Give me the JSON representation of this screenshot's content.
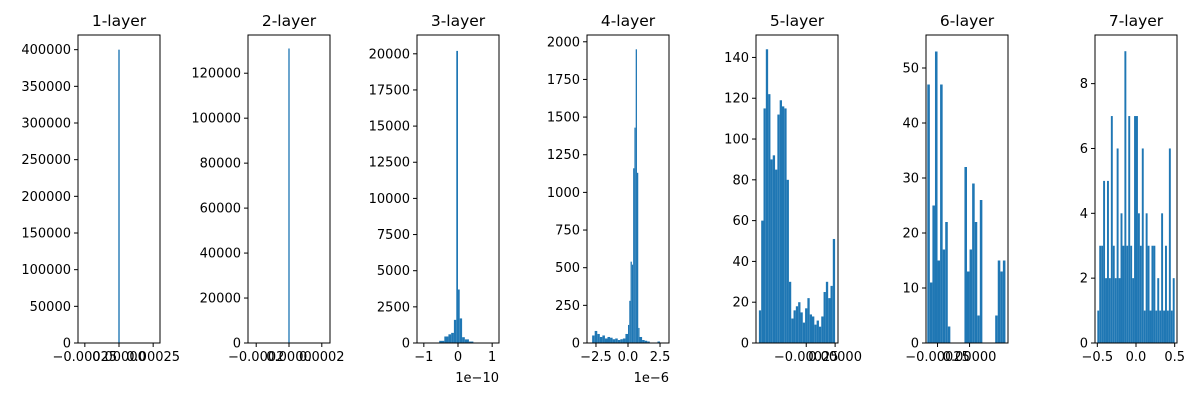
{
  "figure": {
    "bar_color": "#1f77b4"
  },
  "chart_data": [
    {
      "type": "bar",
      "title": "1-layer",
      "xlim": [
        -0.0003,
        0.0003
      ],
      "ylim": [
        0,
        420000
      ],
      "xticks": [
        {
          "v": -0.00025,
          "label": "−0.00025"
        },
        {
          "v": 0.0,
          "label": "0.00000"
        },
        {
          "v": 0.00025,
          "label": "0.00025"
        }
      ],
      "yticks": [
        {
          "v": 0,
          "label": "0"
        },
        {
          "v": 50000,
          "label": "50000"
        },
        {
          "v": 100000,
          "label": "100000"
        },
        {
          "v": 150000,
          "label": "150000"
        },
        {
          "v": 200000,
          "label": "200000"
        },
        {
          "v": 250000,
          "label": "250000"
        },
        {
          "v": 300000,
          "label": "300000"
        },
        {
          "v": 350000,
          "label": "350000"
        },
        {
          "v": 400000,
          "label": "400000"
        }
      ],
      "bins": [
        {
          "x0": -5e-06,
          "x1": 5e-06,
          "y": 400000
        }
      ]
    },
    {
      "type": "bar",
      "title": "2-layer",
      "xlim": [
        -0.00025,
        0.00025
      ],
      "ylim": [
        0,
        137000
      ],
      "xticks": [
        {
          "v": -0.0002,
          "label": "−0.0002"
        },
        {
          "v": 0.0,
          "label": "0.0000"
        },
        {
          "v": 0.0002,
          "label": "0.0002"
        }
      ],
      "yticks": [
        {
          "v": 0,
          "label": "0"
        },
        {
          "v": 20000,
          "label": "20000"
        },
        {
          "v": 40000,
          "label": "40000"
        },
        {
          "v": 60000,
          "label": "60000"
        },
        {
          "v": 80000,
          "label": "80000"
        },
        {
          "v": 100000,
          "label": "100000"
        },
        {
          "v": 120000,
          "label": "120000"
        }
      ],
      "bins": [
        {
          "x0": -4e-06,
          "x1": 4e-06,
          "y": 131000
        }
      ]
    },
    {
      "type": "bar",
      "title": "3-layer",
      "xlim": [
        -1.2,
        1.2
      ],
      "ylim": [
        0,
        21300
      ],
      "offset_text": "1e−10",
      "xticks": [
        {
          "v": -1,
          "label": "−1"
        },
        {
          "v": 0,
          "label": "0"
        },
        {
          "v": 1,
          "label": "1"
        }
      ],
      "yticks": [
        {
          "v": 0,
          "label": "0"
        },
        {
          "v": 2500,
          "label": "2500"
        },
        {
          "v": 5000,
          "label": "5000"
        },
        {
          "v": 7500,
          "label": "7500"
        },
        {
          "v": 10000,
          "label": "10000"
        },
        {
          "v": 12500,
          "label": "12500"
        },
        {
          "v": 15000,
          "label": "15000"
        },
        {
          "v": 17500,
          "label": "17500"
        },
        {
          "v": 20000,
          "label": "20000"
        }
      ],
      "bins": [
        {
          "x0": -0.55,
          "x1": -0.4,
          "y": 150
        },
        {
          "x0": -0.4,
          "x1": -0.28,
          "y": 450
        },
        {
          "x0": -0.28,
          "x1": -0.2,
          "y": 600
        },
        {
          "x0": -0.2,
          "x1": -0.12,
          "y": 700
        },
        {
          "x0": -0.12,
          "x1": -0.05,
          "y": 1600
        },
        {
          "x0": -0.05,
          "x1": 0.0,
          "y": 20200
        },
        {
          "x0": 0.0,
          "x1": 0.05,
          "y": 3700
        },
        {
          "x0": 0.05,
          "x1": 0.12,
          "y": 1700
        },
        {
          "x0": 0.12,
          "x1": 0.2,
          "y": 400
        },
        {
          "x0": 0.2,
          "x1": 0.32,
          "y": 250
        },
        {
          "x0": 0.32,
          "x1": 0.45,
          "y": 100
        }
      ]
    },
    {
      "type": "bar",
      "title": "4-layer",
      "xlim": [
        -3.2,
        3.2
      ],
      "ylim": [
        0,
        2045
      ],
      "offset_text": "1e−6",
      "xticks": [
        {
          "v": -2.5,
          "label": "−2.5"
        },
        {
          "v": 0.0,
          "label": "0.0"
        },
        {
          "v": 2.5,
          "label": "2.5"
        }
      ],
      "yticks": [
        {
          "v": 0,
          "label": "0"
        },
        {
          "v": 250,
          "label": "250"
        },
        {
          "v": 500,
          "label": "500"
        },
        {
          "v": 750,
          "label": "750"
        },
        {
          "v": 1000,
          "label": "1000"
        },
        {
          "v": 1250,
          "label": "1250"
        },
        {
          "v": 1500,
          "label": "1500"
        },
        {
          "v": 1750,
          "label": "1750"
        },
        {
          "v": 2000,
          "label": "2000"
        }
      ],
      "bins": [
        {
          "x0": -2.8,
          "x1": -2.6,
          "y": 50
        },
        {
          "x0": -2.6,
          "x1": -2.4,
          "y": 80
        },
        {
          "x0": -2.4,
          "x1": -2.2,
          "y": 60
        },
        {
          "x0": -2.2,
          "x1": -2.0,
          "y": 40
        },
        {
          "x0": -2.0,
          "x1": -1.8,
          "y": 50
        },
        {
          "x0": -1.8,
          "x1": -1.6,
          "y": 30
        },
        {
          "x0": -1.6,
          "x1": -1.4,
          "y": 40
        },
        {
          "x0": -1.4,
          "x1": -1.2,
          "y": 35
        },
        {
          "x0": -1.2,
          "x1": -1.0,
          "y": 25
        },
        {
          "x0": -1.0,
          "x1": -0.8,
          "y": 30
        },
        {
          "x0": -0.8,
          "x1": -0.6,
          "y": 20
        },
        {
          "x0": -0.6,
          "x1": -0.4,
          "y": 25
        },
        {
          "x0": -0.4,
          "x1": -0.2,
          "y": 30
        },
        {
          "x0": -0.2,
          "x1": 0.0,
          "y": 60
        },
        {
          "x0": 0.0,
          "x1": 0.1,
          "y": 120
        },
        {
          "x0": 0.1,
          "x1": 0.2,
          "y": 280
        },
        {
          "x0": 0.2,
          "x1": 0.3,
          "y": 540
        },
        {
          "x0": 0.3,
          "x1": 0.4,
          "y": 520
        },
        {
          "x0": 0.4,
          "x1": 0.5,
          "y": 1160
        },
        {
          "x0": 0.5,
          "x1": 0.6,
          "y": 1430
        },
        {
          "x0": 0.6,
          "x1": 0.7,
          "y": 1950
        },
        {
          "x0": 0.7,
          "x1": 0.8,
          "y": 1130
        },
        {
          "x0": 0.8,
          "x1": 0.9,
          "y": 100
        },
        {
          "x0": 0.9,
          "x1": 1.1,
          "y": 40
        },
        {
          "x0": 1.1,
          "x1": 1.3,
          "y": 20
        },
        {
          "x0": 1.3,
          "x1": 1.5,
          "y": 15
        },
        {
          "x0": 1.5,
          "x1": 1.7,
          "y": 10
        },
        {
          "x0": 2.3,
          "x1": 2.5,
          "y": 10
        }
      ]
    },
    {
      "type": "bar",
      "title": "5-layer",
      "xlim": [
        -0.000685,
        2.5e-05
      ],
      "ylim": [
        0,
        151
      ],
      "xticks": [
        {
          "v": -0.00025,
          "label": "−0.00025"
        },
        {
          "v": 0.0,
          "label": "0.00000"
        }
      ],
      "yticks": [
        {
          "v": 0,
          "label": "0"
        },
        {
          "v": 20,
          "label": "20"
        },
        {
          "v": 40,
          "label": "40"
        },
        {
          "v": 60,
          "label": "60"
        },
        {
          "v": 80,
          "label": "80"
        },
        {
          "v": 100,
          "label": "100"
        },
        {
          "v": 120,
          "label": "120"
        },
        {
          "v": 140,
          "label": "140"
        }
      ],
      "bins": [
        {
          "x0": -0.00066,
          "x1": -0.00064,
          "y": 16
        },
        {
          "x0": -0.00064,
          "x1": -0.00062,
          "y": 60
        },
        {
          "x0": -0.00062,
          "x1": -0.0006,
          "y": 115
        },
        {
          "x0": -0.0006,
          "x1": -0.00058,
          "y": 144
        },
        {
          "x0": -0.00058,
          "x1": -0.00056,
          "y": 122
        },
        {
          "x0": -0.00056,
          "x1": -0.00054,
          "y": 90
        },
        {
          "x0": -0.00054,
          "x1": -0.00052,
          "y": 92
        },
        {
          "x0": -0.00052,
          "x1": -0.0005,
          "y": 85
        },
        {
          "x0": -0.0005,
          "x1": -0.00048,
          "y": 112
        },
        {
          "x0": -0.00048,
          "x1": -0.00046,
          "y": 119
        },
        {
          "x0": -0.00046,
          "x1": -0.00044,
          "y": 116
        },
        {
          "x0": -0.00044,
          "x1": -0.00042,
          "y": 115
        },
        {
          "x0": -0.00042,
          "x1": -0.0004,
          "y": 80
        },
        {
          "x0": -0.0004,
          "x1": -0.00038,
          "y": 30
        },
        {
          "x0": -0.00038,
          "x1": -0.00036,
          "y": 12
        },
        {
          "x0": -0.00036,
          "x1": -0.00034,
          "y": 16
        },
        {
          "x0": -0.00034,
          "x1": -0.00032,
          "y": 18
        },
        {
          "x0": -0.00032,
          "x1": -0.0003,
          "y": 20
        },
        {
          "x0": -0.0003,
          "x1": -0.00028,
          "y": 15
        },
        {
          "x0": -0.00028,
          "x1": -0.00026,
          "y": 10
        },
        {
          "x0": -0.00026,
          "x1": -0.00024,
          "y": 17
        },
        {
          "x0": -0.00024,
          "x1": -0.00022,
          "y": 22
        },
        {
          "x0": -0.00022,
          "x1": -0.0002,
          "y": 14
        },
        {
          "x0": -0.0002,
          "x1": -0.00018,
          "y": 13
        },
        {
          "x0": -0.00018,
          "x1": -0.00016,
          "y": 9
        },
        {
          "x0": -0.00016,
          "x1": -0.00014,
          "y": 11
        },
        {
          "x0": -0.00014,
          "x1": -0.00012,
          "y": 8
        },
        {
          "x0": -0.00012,
          "x1": -0.0001,
          "y": 13
        },
        {
          "x0": -0.0001,
          "x1": -8e-05,
          "y": 25
        },
        {
          "x0": -8e-05,
          "x1": -6e-05,
          "y": 30
        },
        {
          "x0": -6e-05,
          "x1": -4e-05,
          "y": 22
        },
        {
          "x0": -4e-05,
          "x1": -2e-05,
          "y": 28
        },
        {
          "x0": -2e-05,
          "x1": 0.0,
          "y": 51
        }
      ]
    },
    {
      "type": "bar",
      "title": "6-layer",
      "xlim": [
        -0.00034,
        0.0003
      ],
      "ylim": [
        0,
        56
      ],
      "xticks": [
        {
          "v": -0.00025,
          "label": "−0.00025"
        },
        {
          "v": 0.0,
          "label": "0.00000"
        }
      ],
      "yticks": [
        {
          "v": 0,
          "label": "0"
        },
        {
          "v": 10,
          "label": "10"
        },
        {
          "v": 20,
          "label": "20"
        },
        {
          "v": 30,
          "label": "30"
        },
        {
          "v": 40,
          "label": "40"
        },
        {
          "v": 50,
          "label": "50"
        }
      ],
      "bins": [
        {
          "x0": -0.00033,
          "x1": -0.00031,
          "y": 47
        },
        {
          "x0": -0.00031,
          "x1": -0.00029,
          "y": 11
        },
        {
          "x0": -0.00029,
          "x1": -0.00027,
          "y": 25
        },
        {
          "x0": -0.00027,
          "x1": -0.00025,
          "y": 53
        },
        {
          "x0": -0.00025,
          "x1": -0.00023,
          "y": 15
        },
        {
          "x0": -0.00023,
          "x1": -0.00021,
          "y": 47
        },
        {
          "x0": -0.00021,
          "x1": -0.00019,
          "y": 17
        },
        {
          "x0": -0.00019,
          "x1": -0.00017,
          "y": 22
        },
        {
          "x0": -0.00017,
          "x1": -0.00015,
          "y": 3
        },
        {
          "x0": -4e-05,
          "x1": -2e-05,
          "y": 32
        },
        {
          "x0": -2e-05,
          "x1": 0.0,
          "y": 13
        },
        {
          "x0": 0.0,
          "x1": 2e-05,
          "y": 17
        },
        {
          "x0": 2e-05,
          "x1": 4e-05,
          "y": 29
        },
        {
          "x0": 4e-05,
          "x1": 6e-05,
          "y": 22
        },
        {
          "x0": 6e-05,
          "x1": 8e-05,
          "y": 5
        },
        {
          "x0": 8e-05,
          "x1": 0.0001,
          "y": 26
        },
        {
          "x0": 0.0002,
          "x1": 0.00022,
          "y": 5
        },
        {
          "x0": 0.00022,
          "x1": 0.00024,
          "y": 15
        },
        {
          "x0": 0.00024,
          "x1": 0.00026,
          "y": 13
        },
        {
          "x0": 0.00026,
          "x1": 0.00028,
          "y": 15
        }
      ]
    },
    {
      "type": "bar",
      "title": "7-layer",
      "xlim": [
        -0.53,
        0.53
      ],
      "ylim": [
        0,
        9.5
      ],
      "xticks": [
        {
          "v": -0.5,
          "label": "−0.5"
        },
        {
          "v": 0.0,
          "label": "0.0"
        },
        {
          "v": 0.5,
          "label": "0.5"
        }
      ],
      "yticks": [
        {
          "v": 0,
          "label": "0"
        },
        {
          "v": 2,
          "label": "2"
        },
        {
          "v": 4,
          "label": "4"
        },
        {
          "v": 6,
          "label": "6"
        },
        {
          "v": 8,
          "label": "8"
        }
      ],
      "bins": [
        {
          "x0": -0.5,
          "x1": -0.475,
          "y": 1
        },
        {
          "x0": -0.475,
          "x1": -0.45,
          "y": 3
        },
        {
          "x0": -0.45,
          "x1": -0.425,
          "y": 3
        },
        {
          "x0": -0.425,
          "x1": -0.4,
          "y": 5
        },
        {
          "x0": -0.4,
          "x1": -0.375,
          "y": 2
        },
        {
          "x0": -0.375,
          "x1": -0.35,
          "y": 5
        },
        {
          "x0": -0.35,
          "x1": -0.325,
          "y": 2
        },
        {
          "x0": -0.325,
          "x1": -0.3,
          "y": 7
        },
        {
          "x0": -0.3,
          "x1": -0.275,
          "y": 3
        },
        {
          "x0": -0.275,
          "x1": -0.25,
          "y": 2
        },
        {
          "x0": -0.25,
          "x1": -0.225,
          "y": 6
        },
        {
          "x0": -0.225,
          "x1": -0.2,
          "y": 2
        },
        {
          "x0": -0.2,
          "x1": -0.175,
          "y": 4
        },
        {
          "x0": -0.175,
          "x1": -0.15,
          "y": 3
        },
        {
          "x0": -0.15,
          "x1": -0.125,
          "y": 9
        },
        {
          "x0": -0.125,
          "x1": -0.1,
          "y": 3
        },
        {
          "x0": -0.1,
          "x1": -0.075,
          "y": 7
        },
        {
          "x0": -0.075,
          "x1": -0.05,
          "y": 3
        },
        {
          "x0": -0.05,
          "x1": -0.025,
          "y": 2
        },
        {
          "x0": -0.025,
          "x1": 0.0,
          "y": 7
        },
        {
          "x0": 0.0,
          "x1": 0.025,
          "y": 7
        },
        {
          "x0": 0.025,
          "x1": 0.05,
          "y": 4
        },
        {
          "x0": 0.05,
          "x1": 0.075,
          "y": 3
        },
        {
          "x0": 0.075,
          "x1": 0.1,
          "y": 6
        },
        {
          "x0": 0.1,
          "x1": 0.125,
          "y": 1
        },
        {
          "x0": 0.125,
          "x1": 0.15,
          "y": 4
        },
        {
          "x0": 0.15,
          "x1": 0.175,
          "y": 3
        },
        {
          "x0": 0.175,
          "x1": 0.2,
          "y": 1
        },
        {
          "x0": 0.2,
          "x1": 0.225,
          "y": 3
        },
        {
          "x0": 0.225,
          "x1": 0.25,
          "y": 3
        },
        {
          "x0": 0.25,
          "x1": 0.275,
          "y": 1
        },
        {
          "x0": 0.275,
          "x1": 0.3,
          "y": 2
        },
        {
          "x0": 0.3,
          "x1": 0.325,
          "y": 1
        },
        {
          "x0": 0.325,
          "x1": 0.35,
          "y": 4
        },
        {
          "x0": 0.35,
          "x1": 0.375,
          "y": 1
        },
        {
          "x0": 0.375,
          "x1": 0.4,
          "y": 3
        },
        {
          "x0": 0.4,
          "x1": 0.425,
          "y": 1
        },
        {
          "x0": 0.425,
          "x1": 0.45,
          "y": 6
        },
        {
          "x0": 0.45,
          "x1": 0.475,
          "y": 1
        },
        {
          "x0": 0.475,
          "x1": 0.5,
          "y": 2
        }
      ]
    }
  ]
}
